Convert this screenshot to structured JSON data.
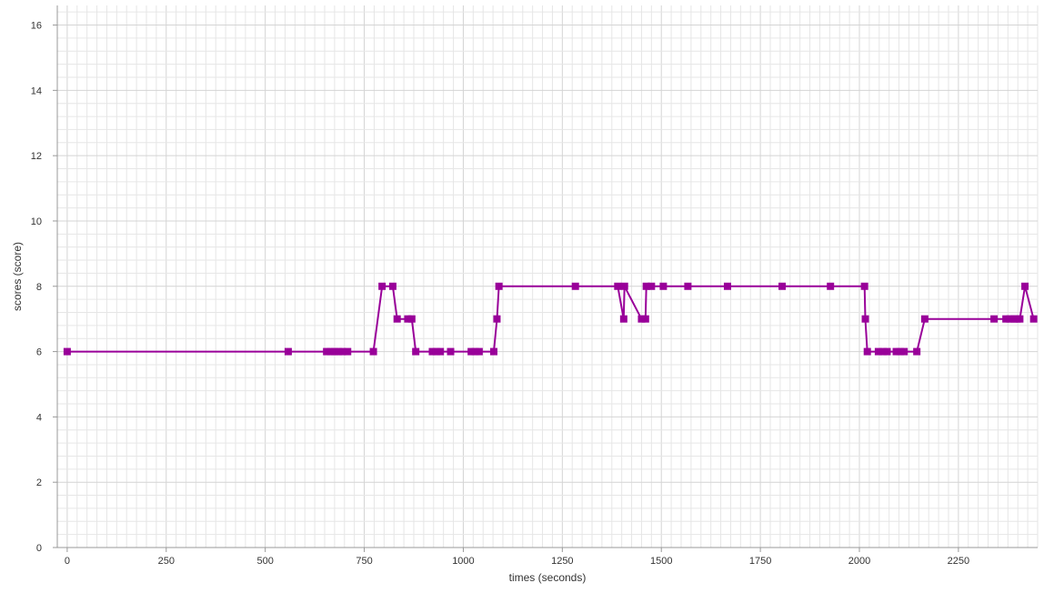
{
  "chart_data": {
    "type": "line",
    "title": "",
    "xlabel": "times (seconds)",
    "ylabel": "scores (score)",
    "xlim": [
      -25,
      2450
    ],
    "ylim": [
      0,
      16.6
    ],
    "x_ticks": [
      0,
      250,
      500,
      750,
      1000,
      1250,
      1500,
      1750,
      2000,
      2250
    ],
    "y_ticks": [
      0,
      2,
      4,
      6,
      8,
      10,
      12,
      14,
      16
    ],
    "grid": true,
    "legend": "none",
    "series": [
      {
        "color": "#990099",
        "marker": "square",
        "points": [
          [
            0,
            6
          ],
          [
            558,
            6
          ],
          [
            655,
            6
          ],
          [
            665,
            6
          ],
          [
            675,
            6
          ],
          [
            685,
            6
          ],
          [
            695,
            6
          ],
          [
            708,
            6
          ],
          [
            773,
            6
          ],
          [
            795,
            8
          ],
          [
            822,
            8
          ],
          [
            833,
            7
          ],
          [
            860,
            7
          ],
          [
            870,
            7
          ],
          [
            880,
            6
          ],
          [
            922,
            6
          ],
          [
            932,
            6
          ],
          [
            942,
            6
          ],
          [
            968,
            6
          ],
          [
            1020,
            6
          ],
          [
            1030,
            6
          ],
          [
            1040,
            6
          ],
          [
            1077,
            6
          ],
          [
            1085,
            7
          ],
          [
            1090,
            8
          ],
          [
            1283,
            8
          ],
          [
            1390,
            8
          ],
          [
            1405,
            7
          ],
          [
            1407,
            8
          ],
          [
            1450,
            7
          ],
          [
            1460,
            7
          ],
          [
            1462,
            8
          ],
          [
            1475,
            8
          ],
          [
            1505,
            8
          ],
          [
            1567,
            8
          ],
          [
            1667,
            8
          ],
          [
            1805,
            8
          ],
          [
            1927,
            8
          ],
          [
            2013,
            8
          ],
          [
            2015,
            7
          ],
          [
            2020,
            6
          ],
          [
            2048,
            6
          ],
          [
            2060,
            6
          ],
          [
            2070,
            6
          ],
          [
            2093,
            6
          ],
          [
            2103,
            6
          ],
          [
            2113,
            6
          ],
          [
            2145,
            6
          ],
          [
            2165,
            7
          ],
          [
            2340,
            7
          ],
          [
            2370,
            7
          ],
          [
            2380,
            7
          ],
          [
            2390,
            7
          ],
          [
            2398,
            7
          ],
          [
            2405,
            7
          ],
          [
            2418,
            8
          ],
          [
            2440,
            7
          ]
        ]
      }
    ]
  }
}
